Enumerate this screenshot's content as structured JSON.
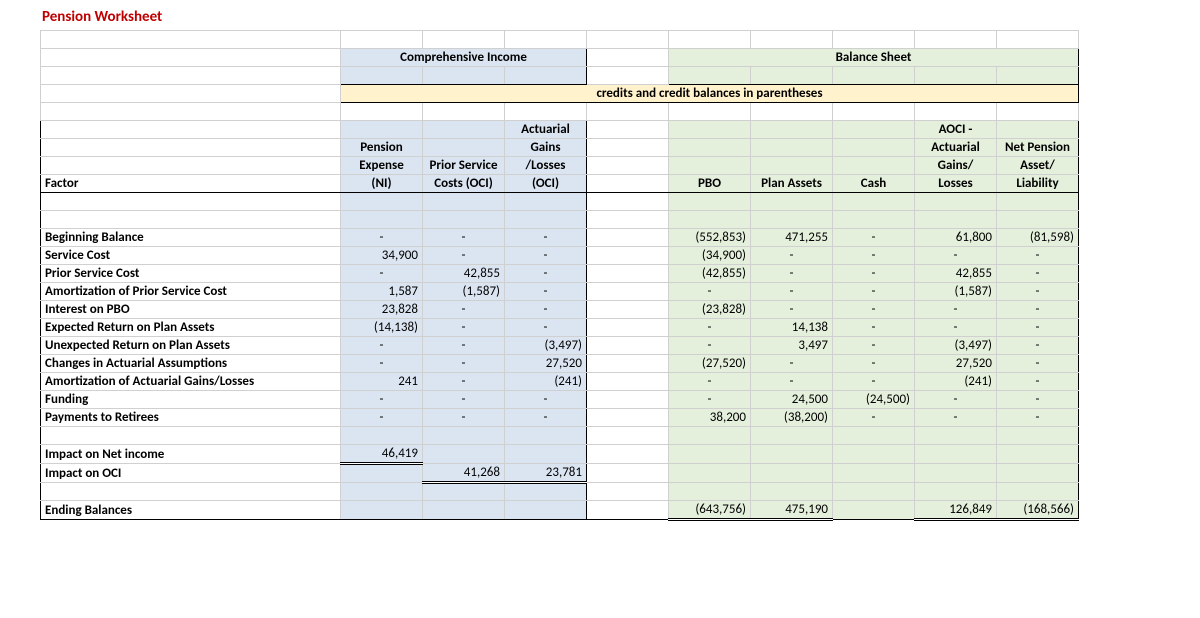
{
  "title": "Pension Worksheet",
  "section_headers": {
    "comp_income": "Comprehensive Income",
    "balance_sheet": "Balance Sheet",
    "credits_note": "credits and credit balances in parentheses"
  },
  "col_headers": {
    "factor": "Factor",
    "pension_expense_l1": "Pension",
    "pension_expense_l2": "Expense",
    "pension_expense_l3": "(NI)",
    "prior_svc_l1": "Prior Service",
    "prior_svc_l2": "Costs (OCI)",
    "act_gains_l1": "Actuarial",
    "act_gains_l2": "Gains",
    "act_gains_l3": "/Losses",
    "act_gains_l4": "(OCI)",
    "pbo": "PBO",
    "plan_assets": "Plan Assets",
    "cash": "Cash",
    "aoci_l1": "AOCI -",
    "aoci_l2": "Actuarial",
    "aoci_l3": "Gains/",
    "aoci_l4": "Losses",
    "net_l1": "Net Pension",
    "net_l2": "Asset/",
    "net_l3": "Liability"
  },
  "rows": {
    "beg": {
      "label": "Beginning Balance",
      "pe": "-",
      "psc": "-",
      "agl": "-",
      "pbo": "(552,853)",
      "pa": "471,255",
      "cash": "-",
      "aoci": "61,800",
      "net": "(81,598)"
    },
    "svc": {
      "label": "Service Cost",
      "pe": "34,900",
      "psc": "-",
      "agl": "-",
      "pbo": "(34,900)",
      "pa": "-",
      "cash": "-",
      "aoci": "-",
      "net": "-"
    },
    "prsvc": {
      "label": "Prior Service Cost",
      "pe": "-",
      "psc": "42,855",
      "agl": "-",
      "pbo": "(42,855)",
      "pa": "-",
      "cash": "-",
      "aoci": "42,855",
      "net": "-"
    },
    "amort": {
      "label": "Amortization of Prior Service Cost",
      "pe": "1,587",
      "psc": "(1,587)",
      "agl": "-",
      "pbo": "-",
      "pa": "-",
      "cash": "-",
      "aoci": "(1,587)",
      "net": "-"
    },
    "int": {
      "label": "Interest on PBO",
      "pe": "23,828",
      "psc": "-",
      "agl": "-",
      "pbo": "(23,828)",
      "pa": "-",
      "cash": "-",
      "aoci": "-",
      "net": "-"
    },
    "exp": {
      "label": "Expected Return on Plan Assets",
      "pe": "(14,138)",
      "psc": "-",
      "agl": "-",
      "pbo": "-",
      "pa": "14,138",
      "cash": "-",
      "aoci": "-",
      "net": "-"
    },
    "unexp": {
      "label": "Unexpected Return on Plan Assets",
      "pe": "-",
      "psc": "-",
      "agl": "(3,497)",
      "pbo": "-",
      "pa": "3,497",
      "cash": "-",
      "aoci": "(3,497)",
      "net": "-"
    },
    "chg": {
      "label": "Changes in Actuarial Assumptions",
      "pe": "-",
      "psc": "-",
      "agl": "27,520",
      "pbo": "(27,520)",
      "pa": "-",
      "cash": "-",
      "aoci": "27,520",
      "net": "-"
    },
    "amgl": {
      "label": "Amortization of Actuarial Gains/Losses",
      "pe": "241",
      "psc": "-",
      "agl": "(241)",
      "pbo": "-",
      "pa": "-",
      "cash": "-",
      "aoci": "(241)",
      "net": "-"
    },
    "fund": {
      "label": "Funding",
      "pe": "-",
      "psc": "-",
      "agl": "-",
      "pbo": "-",
      "pa": "24,500",
      "cash": "(24,500)",
      "aoci": "-",
      "net": "-"
    },
    "pay": {
      "label": "Payments to Retirees",
      "pe": "-",
      "psc": "-",
      "agl": "-",
      "pbo": "38,200",
      "pa": "(38,200)",
      "cash": "-",
      "aoci": "-",
      "net": "-"
    }
  },
  "impacts": {
    "ni": {
      "label": "Impact on Net income",
      "pe": "46,419"
    },
    "oci": {
      "label": "Impact on OCI",
      "psc": "41,268",
      "agl": "23,781"
    }
  },
  "ending": {
    "label": "Ending Balances",
    "pbo": "(643,756)",
    "pa": "475,190",
    "aoci": "126,849",
    "net": "(168,566)"
  }
}
